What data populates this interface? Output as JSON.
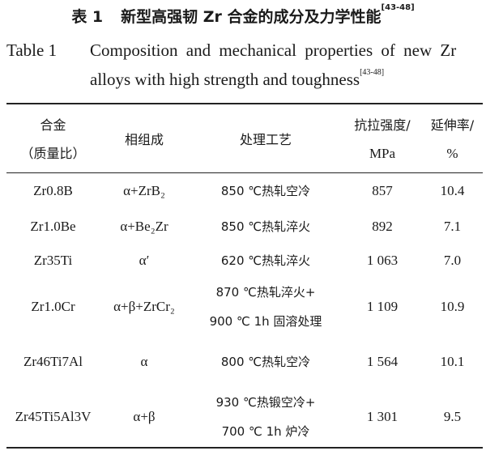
{
  "caption": {
    "cn_label": "表 1",
    "cn_title": "新型高强韧 Zr 合金的成分及力学性能",
    "ref": "[43-48]",
    "en_label": "Table 1",
    "en_title_line1": "Composition and mechanical properties of new Zr",
    "en_title_line2": "alloys with high strength and toughness"
  },
  "table": {
    "headers": {
      "alloy_l1": "合金",
      "alloy_l2": "（质量比）",
      "phase": "相组成",
      "process": "处理工艺",
      "strength_l1": "抗拉强度/",
      "strength_l2": "MPa",
      "elong_l1": "延伸率/",
      "elong_l2": "%"
    },
    "rows": [
      {
        "alloy": "Zr0.8B",
        "phase": "α+ZrB₂",
        "process": [
          "850 ℃热轧空冷"
        ],
        "strength": "857",
        "elongation": "10.4"
      },
      {
        "alloy": "Zr1.0Be",
        "phase": "α+Be₂Zr",
        "process": [
          "850 ℃热轧淬火"
        ],
        "strength": "892",
        "elongation": "7.1"
      },
      {
        "alloy": "Zr35Ti",
        "phase": "α′",
        "process": [
          "620 ℃热轧淬火"
        ],
        "strength": "1 063",
        "elongation": "7.0"
      },
      {
        "alloy": "Zr1.0Cr",
        "phase": "α+β+ZrCr₂",
        "process": [
          "870 ℃热轧淬火+",
          "900 ℃ 1h 固溶处理"
        ],
        "strength": "1 109",
        "elongation": "10.9"
      },
      {
        "alloy": "Zr46Ti7Al",
        "phase": "α",
        "process": [
          "800 ℃热轧空冷"
        ],
        "strength": "1 564",
        "elongation": "10.1"
      },
      {
        "alloy": "Zr45Ti5Al3V",
        "phase": "α+β",
        "process": [
          "930 ℃热锻空冷+",
          "700 ℃ 1h 炉冷"
        ],
        "strength": "1 301",
        "elongation": "9.5"
      }
    ]
  }
}
